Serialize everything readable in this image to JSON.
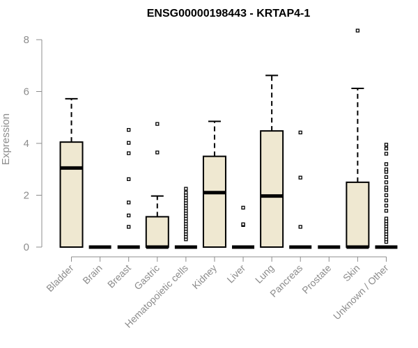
{
  "chart_data": {
    "type": "box",
    "title": "ENSG00000198443 - KRTAP4-1",
    "ylabel": "Expression",
    "xlabel": "",
    "ylim": [
      0,
      8.5
    ],
    "yticks": [
      0,
      2,
      4,
      6,
      8
    ],
    "grid": false,
    "legend": "none",
    "box_color": "#efe8d1",
    "categories": [
      "Bladder",
      "Brain",
      "Breast",
      "Gastric",
      "Hematopoietic cells",
      "Kidney",
      "Liver",
      "Lung",
      "Pancreas",
      "Prostate",
      "Skin",
      "Unknown / Other"
    ],
    "boxes": [
      {
        "q1": 0,
        "median": 3.05,
        "q3": 4.05,
        "whisker_low": 0,
        "whisker_high": 5.72,
        "outliers": []
      },
      {
        "q1": 0,
        "median": 0,
        "q3": 0,
        "whisker_low": 0,
        "whisker_high": 0,
        "outliers": []
      },
      {
        "q1": 0,
        "median": 0,
        "q3": 0,
        "whisker_low": 0,
        "whisker_high": 0,
        "outliers": [
          0.78,
          1.22,
          1.72,
          2.62,
          3.62,
          4.02,
          4.52
        ]
      },
      {
        "q1": 0,
        "median": 0,
        "q3": 1.17,
        "whisker_low": 0,
        "whisker_high": 1.97,
        "outliers": [
          3.65,
          4.75
        ]
      },
      {
        "q1": 0,
        "median": 0,
        "q3": 0,
        "whisker_low": 0,
        "whisker_high": 0,
        "outliers": [
          0.3,
          0.4,
          0.5,
          0.6,
          0.7,
          0.8,
          0.9,
          1.0,
          1.1,
          1.2,
          1.3,
          1.4,
          1.5,
          1.6,
          1.7,
          1.8,
          1.9,
          2.0,
          2.1,
          2.25
        ]
      },
      {
        "q1": 0,
        "median": 2.1,
        "q3": 3.5,
        "whisker_low": 0,
        "whisker_high": 4.85,
        "outliers": []
      },
      {
        "q1": 0,
        "median": 0,
        "q3": 0,
        "whisker_low": 0,
        "whisker_high": 0,
        "outliers": [
          0.85,
          0.88,
          1.52
        ]
      },
      {
        "q1": 0,
        "median": 1.97,
        "q3": 4.48,
        "whisker_low": 0,
        "whisker_high": 6.62,
        "outliers": []
      },
      {
        "q1": 0,
        "median": 0,
        "q3": 0,
        "whisker_low": 0,
        "whisker_high": 0,
        "outliers": [
          0.78,
          2.68,
          4.42
        ]
      },
      {
        "q1": 0,
        "median": 0,
        "q3": 0,
        "whisker_low": 0,
        "whisker_high": 0,
        "outliers": []
      },
      {
        "q1": 0,
        "median": 0,
        "q3": 2.5,
        "whisker_low": 0,
        "whisker_high": 6.12,
        "outliers": [
          8.35
        ]
      },
      {
        "q1": 0,
        "median": 0,
        "q3": 0,
        "whisker_low": 0,
        "whisker_high": 0,
        "outliers": [
          0.2,
          0.3,
          0.4,
          0.5,
          0.6,
          0.7,
          0.8,
          0.9,
          1.0,
          1.1,
          1.4,
          1.6,
          1.8,
          2.0,
          2.2,
          2.3,
          2.5,
          2.7,
          2.9,
          3.0,
          3.2,
          3.6,
          3.8,
          3.95
        ]
      }
    ]
  }
}
